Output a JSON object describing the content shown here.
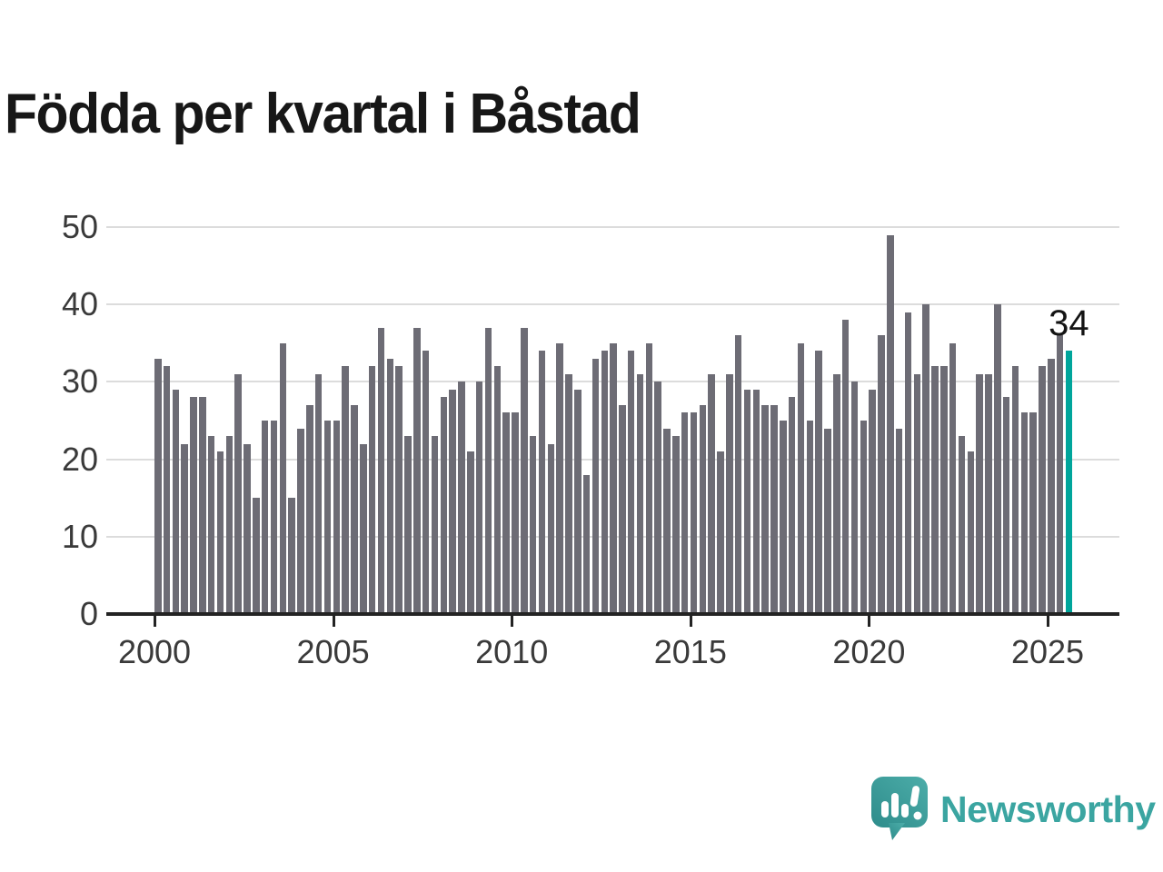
{
  "chart_data": {
    "type": "bar",
    "title": "Födda per kvartal i Båstad",
    "xlabel": "",
    "ylabel": "",
    "ylim": [
      0,
      50
    ],
    "yticks": [
      0,
      10,
      20,
      30,
      40,
      50
    ],
    "xticks": [
      "2000",
      "2005",
      "2010",
      "2015",
      "2020",
      "2025"
    ],
    "grid": "horizontal",
    "bar_color": "#6d6c75",
    "highlight_color": "#00a59b",
    "highlight_index": 102,
    "annotation": {
      "text": "34",
      "target": "2025Q3"
    },
    "categories": [
      "2000Q1",
      "2000Q2",
      "2000Q3",
      "2000Q4",
      "2001Q1",
      "2001Q2",
      "2001Q3",
      "2001Q4",
      "2002Q1",
      "2002Q2",
      "2002Q3",
      "2002Q4",
      "2003Q1",
      "2003Q2",
      "2003Q3",
      "2003Q4",
      "2004Q1",
      "2004Q2",
      "2004Q3",
      "2004Q4",
      "2005Q1",
      "2005Q2",
      "2005Q3",
      "2005Q4",
      "2006Q1",
      "2006Q2",
      "2006Q3",
      "2006Q4",
      "2007Q1",
      "2007Q2",
      "2007Q3",
      "2007Q4",
      "2008Q1",
      "2008Q2",
      "2008Q3",
      "2008Q4",
      "2009Q1",
      "2009Q2",
      "2009Q3",
      "2009Q4",
      "2010Q1",
      "2010Q2",
      "2010Q3",
      "2010Q4",
      "2011Q1",
      "2011Q2",
      "2011Q3",
      "2011Q4",
      "2012Q1",
      "2012Q2",
      "2012Q3",
      "2012Q4",
      "2013Q1",
      "2013Q2",
      "2013Q3",
      "2013Q4",
      "2014Q1",
      "2014Q2",
      "2014Q3",
      "2014Q4",
      "2015Q1",
      "2015Q2",
      "2015Q3",
      "2015Q4",
      "2016Q1",
      "2016Q2",
      "2016Q3",
      "2016Q4",
      "2017Q1",
      "2017Q2",
      "2017Q3",
      "2017Q4",
      "2018Q1",
      "2018Q2",
      "2018Q3",
      "2018Q4",
      "2019Q1",
      "2019Q2",
      "2019Q3",
      "2019Q4",
      "2020Q1",
      "2020Q2",
      "2020Q3",
      "2020Q4",
      "2021Q1",
      "2021Q2",
      "2021Q3",
      "2021Q4",
      "2022Q1",
      "2022Q2",
      "2022Q3",
      "2022Q4",
      "2023Q1",
      "2023Q2",
      "2023Q3",
      "2023Q4",
      "2024Q1",
      "2024Q2",
      "2024Q3",
      "2024Q4",
      "2025Q1",
      "2025Q2",
      "2025Q3"
    ],
    "values": [
      33,
      32,
      29,
      22,
      28,
      28,
      23,
      21,
      23,
      31,
      22,
      15,
      25,
      25,
      35,
      15,
      24,
      27,
      31,
      25,
      25,
      32,
      27,
      22,
      32,
      37,
      33,
      32,
      23,
      37,
      34,
      23,
      28,
      29,
      30,
      21,
      30,
      37,
      32,
      26,
      26,
      37,
      23,
      34,
      22,
      35,
      31,
      29,
      18,
      33,
      34,
      35,
      27,
      34,
      31,
      35,
      30,
      24,
      23,
      26,
      26,
      27,
      31,
      21,
      31,
      36,
      29,
      29,
      27,
      27,
      25,
      28,
      35,
      25,
      34,
      24,
      31,
      38,
      30,
      25,
      29,
      36,
      49,
      24,
      39,
      31,
      40,
      32,
      32,
      35,
      23,
      21,
      31,
      31,
      40,
      28,
      32,
      26,
      26,
      32,
      33,
      36,
      34
    ]
  },
  "logo": {
    "text": "Newsworthy",
    "brand_color": "#3ba5a1"
  }
}
